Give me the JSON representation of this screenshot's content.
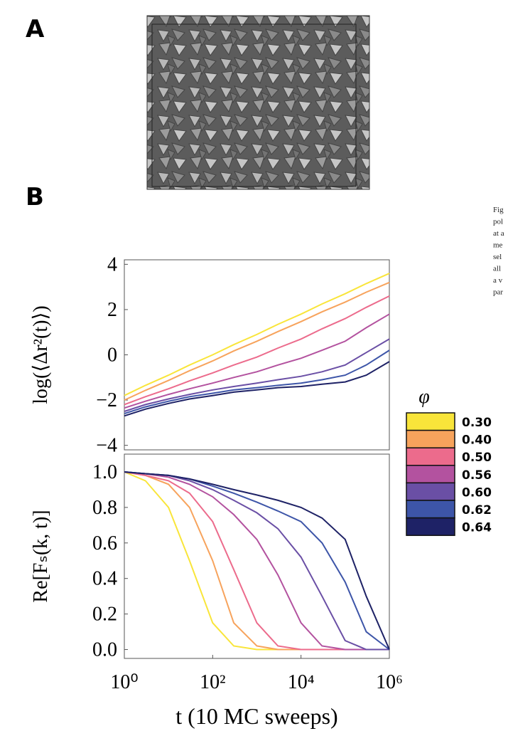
{
  "panels": {
    "a": "A",
    "b": "B"
  },
  "caption": [
    "Fig",
    "pol",
    "at a",
    "me",
    "sel",
    "all",
    "a v",
    "par"
  ],
  "chart_data": [
    {
      "type": "line",
      "ylabel": "log(⟨Δr²(t)⟩)",
      "xscale": "log",
      "xlim": [
        1,
        1000000
      ],
      "ylim": [
        -4.2,
        4.2
      ],
      "yticks": [
        {
          "value": -4,
          "label": "−4"
        },
        {
          "value": -2,
          "label": "−2"
        },
        0,
        2,
        4
      ],
      "legend": {
        "title": "φ",
        "position": "right"
      },
      "x": [
        1,
        3,
        10,
        30,
        100,
        300,
        1000,
        3000,
        10000,
        30000,
        100000,
        300000,
        1000000
      ],
      "series": [
        {
          "name": "0.30",
          "color": "#f9e53a",
          "values": [
            -1.8,
            -1.35,
            -0.9,
            -0.45,
            0,
            0.45,
            0.9,
            1.35,
            1.8,
            2.25,
            2.7,
            3.15,
            3.6
          ]
        },
        {
          "name": "0.40",
          "color": "#f7a35c",
          "values": [
            -2.0,
            -1.57,
            -1.13,
            -0.7,
            -0.27,
            0.17,
            0.6,
            1.03,
            1.47,
            1.9,
            2.33,
            2.77,
            3.2
          ]
        },
        {
          "name": "0.50",
          "color": "#ec6b8c",
          "values": [
            -2.2,
            -1.85,
            -1.5,
            -1.15,
            -0.8,
            -0.45,
            -0.1,
            0.3,
            0.7,
            1.15,
            1.6,
            2.1,
            2.6
          ]
        },
        {
          "name": "0.56",
          "color": "#b3529f",
          "values": [
            -2.35,
            -2.05,
            -1.75,
            -1.5,
            -1.25,
            -1.0,
            -0.75,
            -0.45,
            -0.15,
            0.2,
            0.6,
            1.2,
            1.8
          ]
        },
        {
          "name": "0.60",
          "color": "#6a4fa5",
          "values": [
            -2.5,
            -2.2,
            -1.95,
            -1.75,
            -1.55,
            -1.4,
            -1.25,
            -1.1,
            -0.95,
            -0.75,
            -0.45,
            0.1,
            0.7
          ]
        },
        {
          "name": "0.62",
          "color": "#3d55a8",
          "values": [
            -2.6,
            -2.3,
            -2.05,
            -1.85,
            -1.7,
            -1.55,
            -1.45,
            -1.35,
            -1.25,
            -1.1,
            -0.9,
            -0.45,
            0.2
          ]
        },
        {
          "name": "0.64",
          "color": "#1e2266",
          "values": [
            -2.7,
            -2.4,
            -2.15,
            -1.95,
            -1.8,
            -1.65,
            -1.55,
            -1.45,
            -1.4,
            -1.3,
            -1.2,
            -0.9,
            -0.3
          ]
        }
      ]
    },
    {
      "type": "line",
      "ylabel": "Re[Fₛ(k, t)]",
      "xlabel": "t (10 MC sweeps)",
      "xscale": "log",
      "xlim": [
        1,
        1000000
      ],
      "ylim": [
        -0.05,
        1.1
      ],
      "yticks": [
        {
          "value": 0,
          "label": "0.0"
        },
        {
          "value": 0.2,
          "label": "0.2"
        },
        {
          "value": 0.4,
          "label": "0.4"
        },
        {
          "value": 0.6,
          "label": "0.6"
        },
        {
          "value": 0.8,
          "label": "0.8"
        },
        {
          "value": 1,
          "label": "1.0"
        }
      ],
      "xticks": [
        {
          "value": 1,
          "label": "10⁰"
        },
        {
          "value": 100,
          "label": "10²"
        },
        {
          "value": 10000,
          "label": "10⁴"
        },
        {
          "value": 1000000,
          "label": "10⁶"
        }
      ],
      "x": [
        1,
        3,
        10,
        30,
        100,
        300,
        1000,
        3000,
        10000,
        30000,
        100000,
        300000,
        1000000
      ],
      "series": [
        {
          "name": "0.30",
          "color": "#f9e53a",
          "values": [
            1.0,
            0.95,
            0.8,
            0.5,
            0.15,
            0.02,
            0,
            0,
            0,
            0,
            0,
            0,
            0
          ]
        },
        {
          "name": "0.40",
          "color": "#f7a35c",
          "values": [
            1.0,
            0.98,
            0.93,
            0.8,
            0.5,
            0.15,
            0.02,
            0,
            0,
            0,
            0,
            0,
            0
          ]
        },
        {
          "name": "0.50",
          "color": "#ec6b8c",
          "values": [
            1.0,
            0.98,
            0.95,
            0.88,
            0.72,
            0.45,
            0.15,
            0.02,
            0,
            0,
            0,
            0,
            0
          ]
        },
        {
          "name": "0.56",
          "color": "#b3529f",
          "values": [
            1.0,
            0.99,
            0.97,
            0.93,
            0.86,
            0.76,
            0.62,
            0.42,
            0.15,
            0.02,
            0,
            0,
            0
          ]
        },
        {
          "name": "0.60",
          "color": "#6a4fa5",
          "values": [
            1.0,
            0.99,
            0.98,
            0.95,
            0.9,
            0.84,
            0.77,
            0.68,
            0.52,
            0.3,
            0.05,
            0,
            0
          ]
        },
        {
          "name": "0.62",
          "color": "#3d55a8",
          "values": [
            1.0,
            0.99,
            0.98,
            0.96,
            0.92,
            0.88,
            0.83,
            0.78,
            0.72,
            0.6,
            0.38,
            0.1,
            0
          ]
        },
        {
          "name": "0.64",
          "color": "#1e2266",
          "values": [
            1.0,
            0.99,
            0.98,
            0.96,
            0.93,
            0.9,
            0.87,
            0.84,
            0.8,
            0.74,
            0.62,
            0.3,
            0
          ]
        }
      ]
    }
  ]
}
